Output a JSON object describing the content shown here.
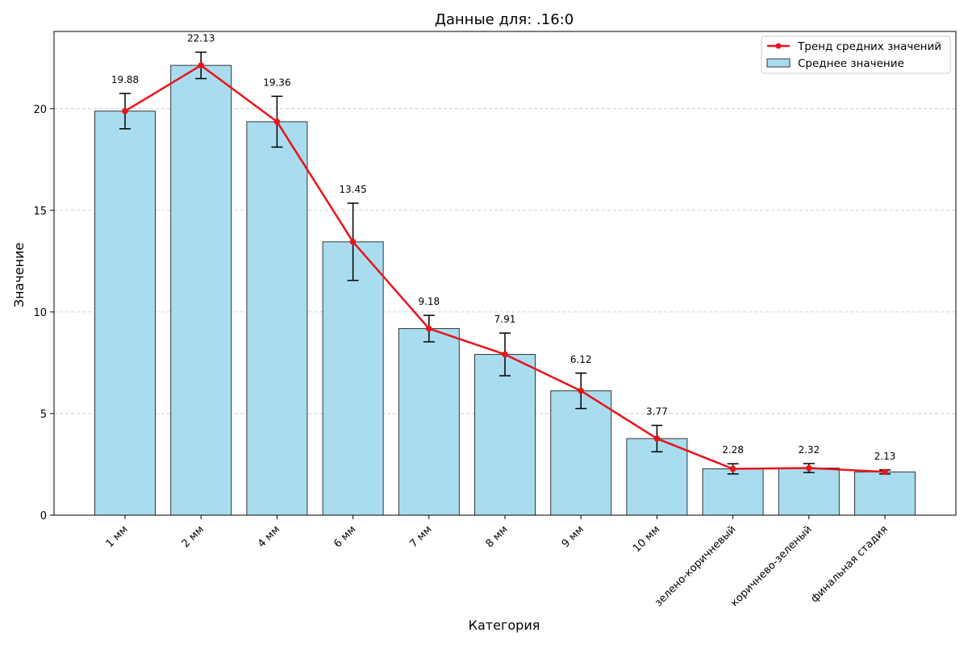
{
  "chart_data": {
    "type": "bar",
    "title": "Данные для: .16:0",
    "xlabel": "Категория",
    "ylabel": "Значение",
    "categories": [
      "1 мм",
      "2 мм",
      "4 мм",
      "6 мм",
      "7 мм",
      "8 мм",
      "9 мм",
      "10 мм",
      "зелено-коричневый",
      "коричнево-зеленый",
      "финальная стадия"
    ],
    "ylim": [
      0,
      23.8
    ],
    "yticks": [
      0,
      5,
      10,
      15,
      20
    ],
    "grid": "y-dashed",
    "legend_position": "top-right",
    "series": [
      {
        "name": "Среднее значение",
        "kind": "bar",
        "values": [
          19.88,
          22.13,
          19.36,
          13.45,
          9.18,
          7.91,
          6.12,
          3.77,
          2.28,
          2.32,
          2.13
        ],
        "errors": [
          0.87,
          0.65,
          1.25,
          1.9,
          0.65,
          1.05,
          0.87,
          0.65,
          0.25,
          0.22,
          0.1
        ],
        "color": "#a9dcef"
      },
      {
        "name": "Тренд средних значений",
        "kind": "line",
        "values": [
          19.88,
          22.13,
          19.36,
          13.45,
          9.18,
          7.91,
          6.12,
          3.77,
          2.28,
          2.32,
          2.13
        ],
        "color": "#e8141a"
      }
    ],
    "data_labels": [
      "19.88",
      "22.13",
      "19.36",
      "13.45",
      "9.18",
      "7.91",
      "6.12",
      "3.77",
      "2.28",
      "2.32",
      "2.13"
    ]
  }
}
